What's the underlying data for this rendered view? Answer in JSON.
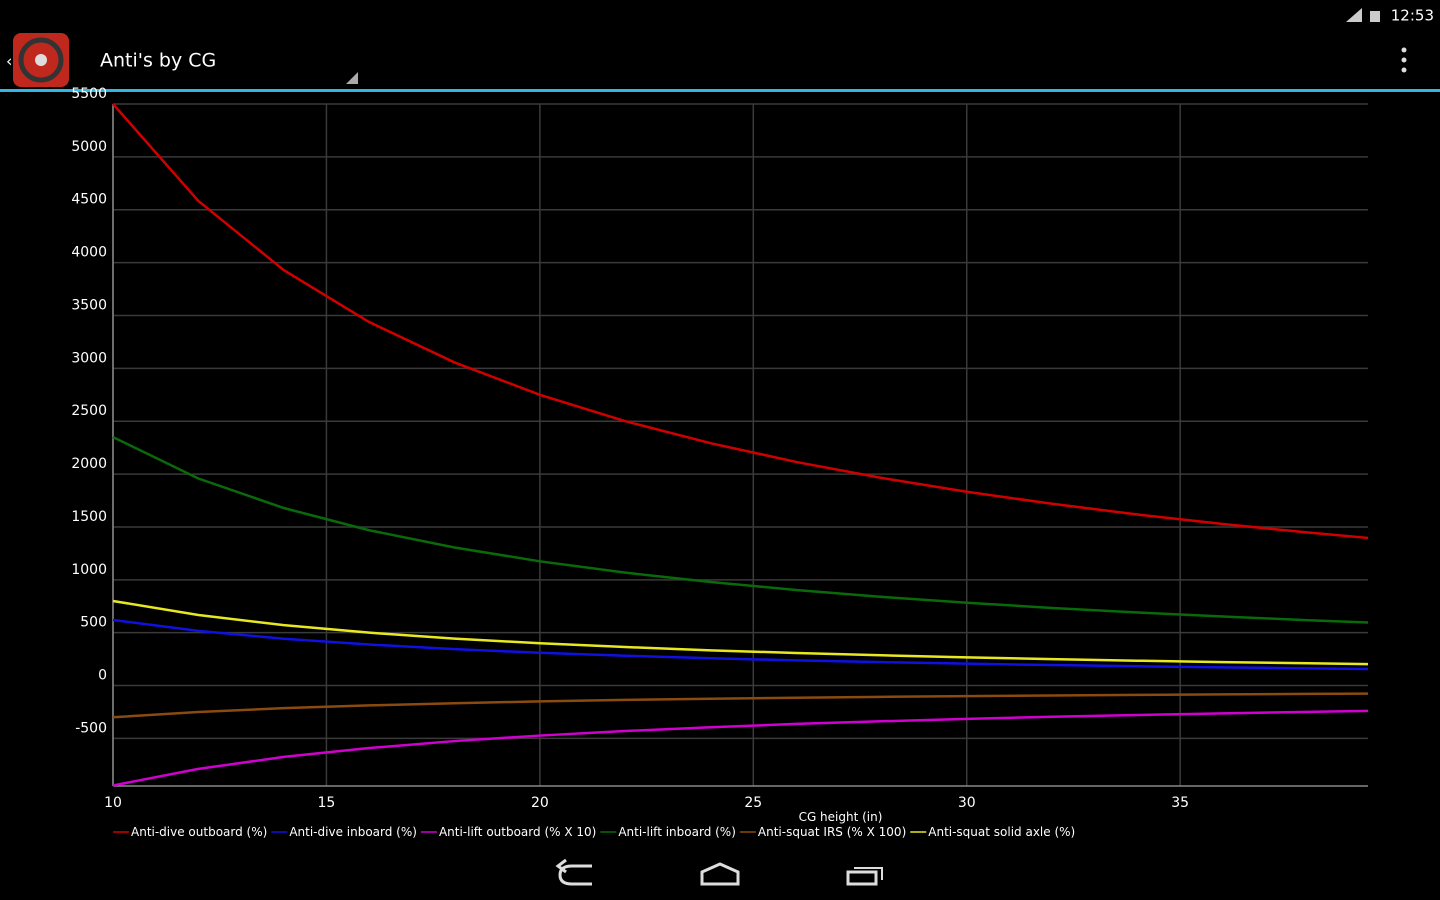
{
  "status_bar": {
    "time": "12:53"
  },
  "action_bar": {
    "title": "Anti's by CG"
  },
  "chart_data": {
    "type": "line",
    "x_label": "CG height (in)",
    "x": [
      10,
      12,
      14,
      16,
      18,
      20,
      22,
      24,
      26,
      28,
      30,
      32,
      34,
      36,
      38,
      39.4
    ],
    "series": [
      {
        "name": "Anti-dive outboard (%)",
        "color": "#d00000",
        "values": [
          5500,
          4583,
          3929,
          3438,
          3056,
          2750,
          2500,
          2292,
          2115,
          1964,
          1833,
          1719,
          1618,
          1528,
          1447,
          1396
        ]
      },
      {
        "name": "Anti-dive inboard (%)",
        "color": "#1010e0",
        "values": [
          620,
          517,
          443,
          388,
          344,
          310,
          282,
          258,
          238,
          221,
          207,
          194,
          182,
          172,
          163,
          157
        ]
      },
      {
        "name": "Anti-lift outboard (% X 10)",
        "color": "#d000d0",
        "values": [
          -945,
          -788,
          -675,
          -591,
          -525,
          -473,
          -430,
          -394,
          -363,
          -338,
          -315,
          -295,
          -278,
          -263,
          -249,
          -240
        ]
      },
      {
        "name": "Anti-lift inboard (%)",
        "color": "#0a6a0a",
        "values": [
          2350,
          1958,
          1679,
          1469,
          1306,
          1175,
          1068,
          979,
          904,
          839,
          783,
          734,
          691,
          653,
          618,
          596
        ]
      },
      {
        "name": "Anti-squat IRS (% X 100)",
        "color": "#8a4a10",
        "values": [
          -300,
          -250,
          -214,
          -188,
          -167,
          -150,
          -136,
          -125,
          -115,
          -107,
          -100,
          -94,
          -88,
          -83,
          -79,
          -76
        ]
      },
      {
        "name": "Anti-squat solid axle (%)",
        "color": "#e8e820",
        "values": [
          800,
          667,
          571,
          500,
          444,
          400,
          364,
          333,
          308,
          286,
          267,
          250,
          235,
          222,
          211,
          203
        ]
      }
    ],
    "xlim": [
      10,
      39.4
    ],
    "ylim": [
      -950,
      5500
    ],
    "xticks": [
      10,
      15,
      20,
      25,
      30,
      35
    ],
    "yticks": [
      -500,
      0,
      500,
      1000,
      1500,
      2000,
      2500,
      3000,
      3500,
      4000,
      4500,
      5000,
      5500
    ],
    "grid": true
  }
}
